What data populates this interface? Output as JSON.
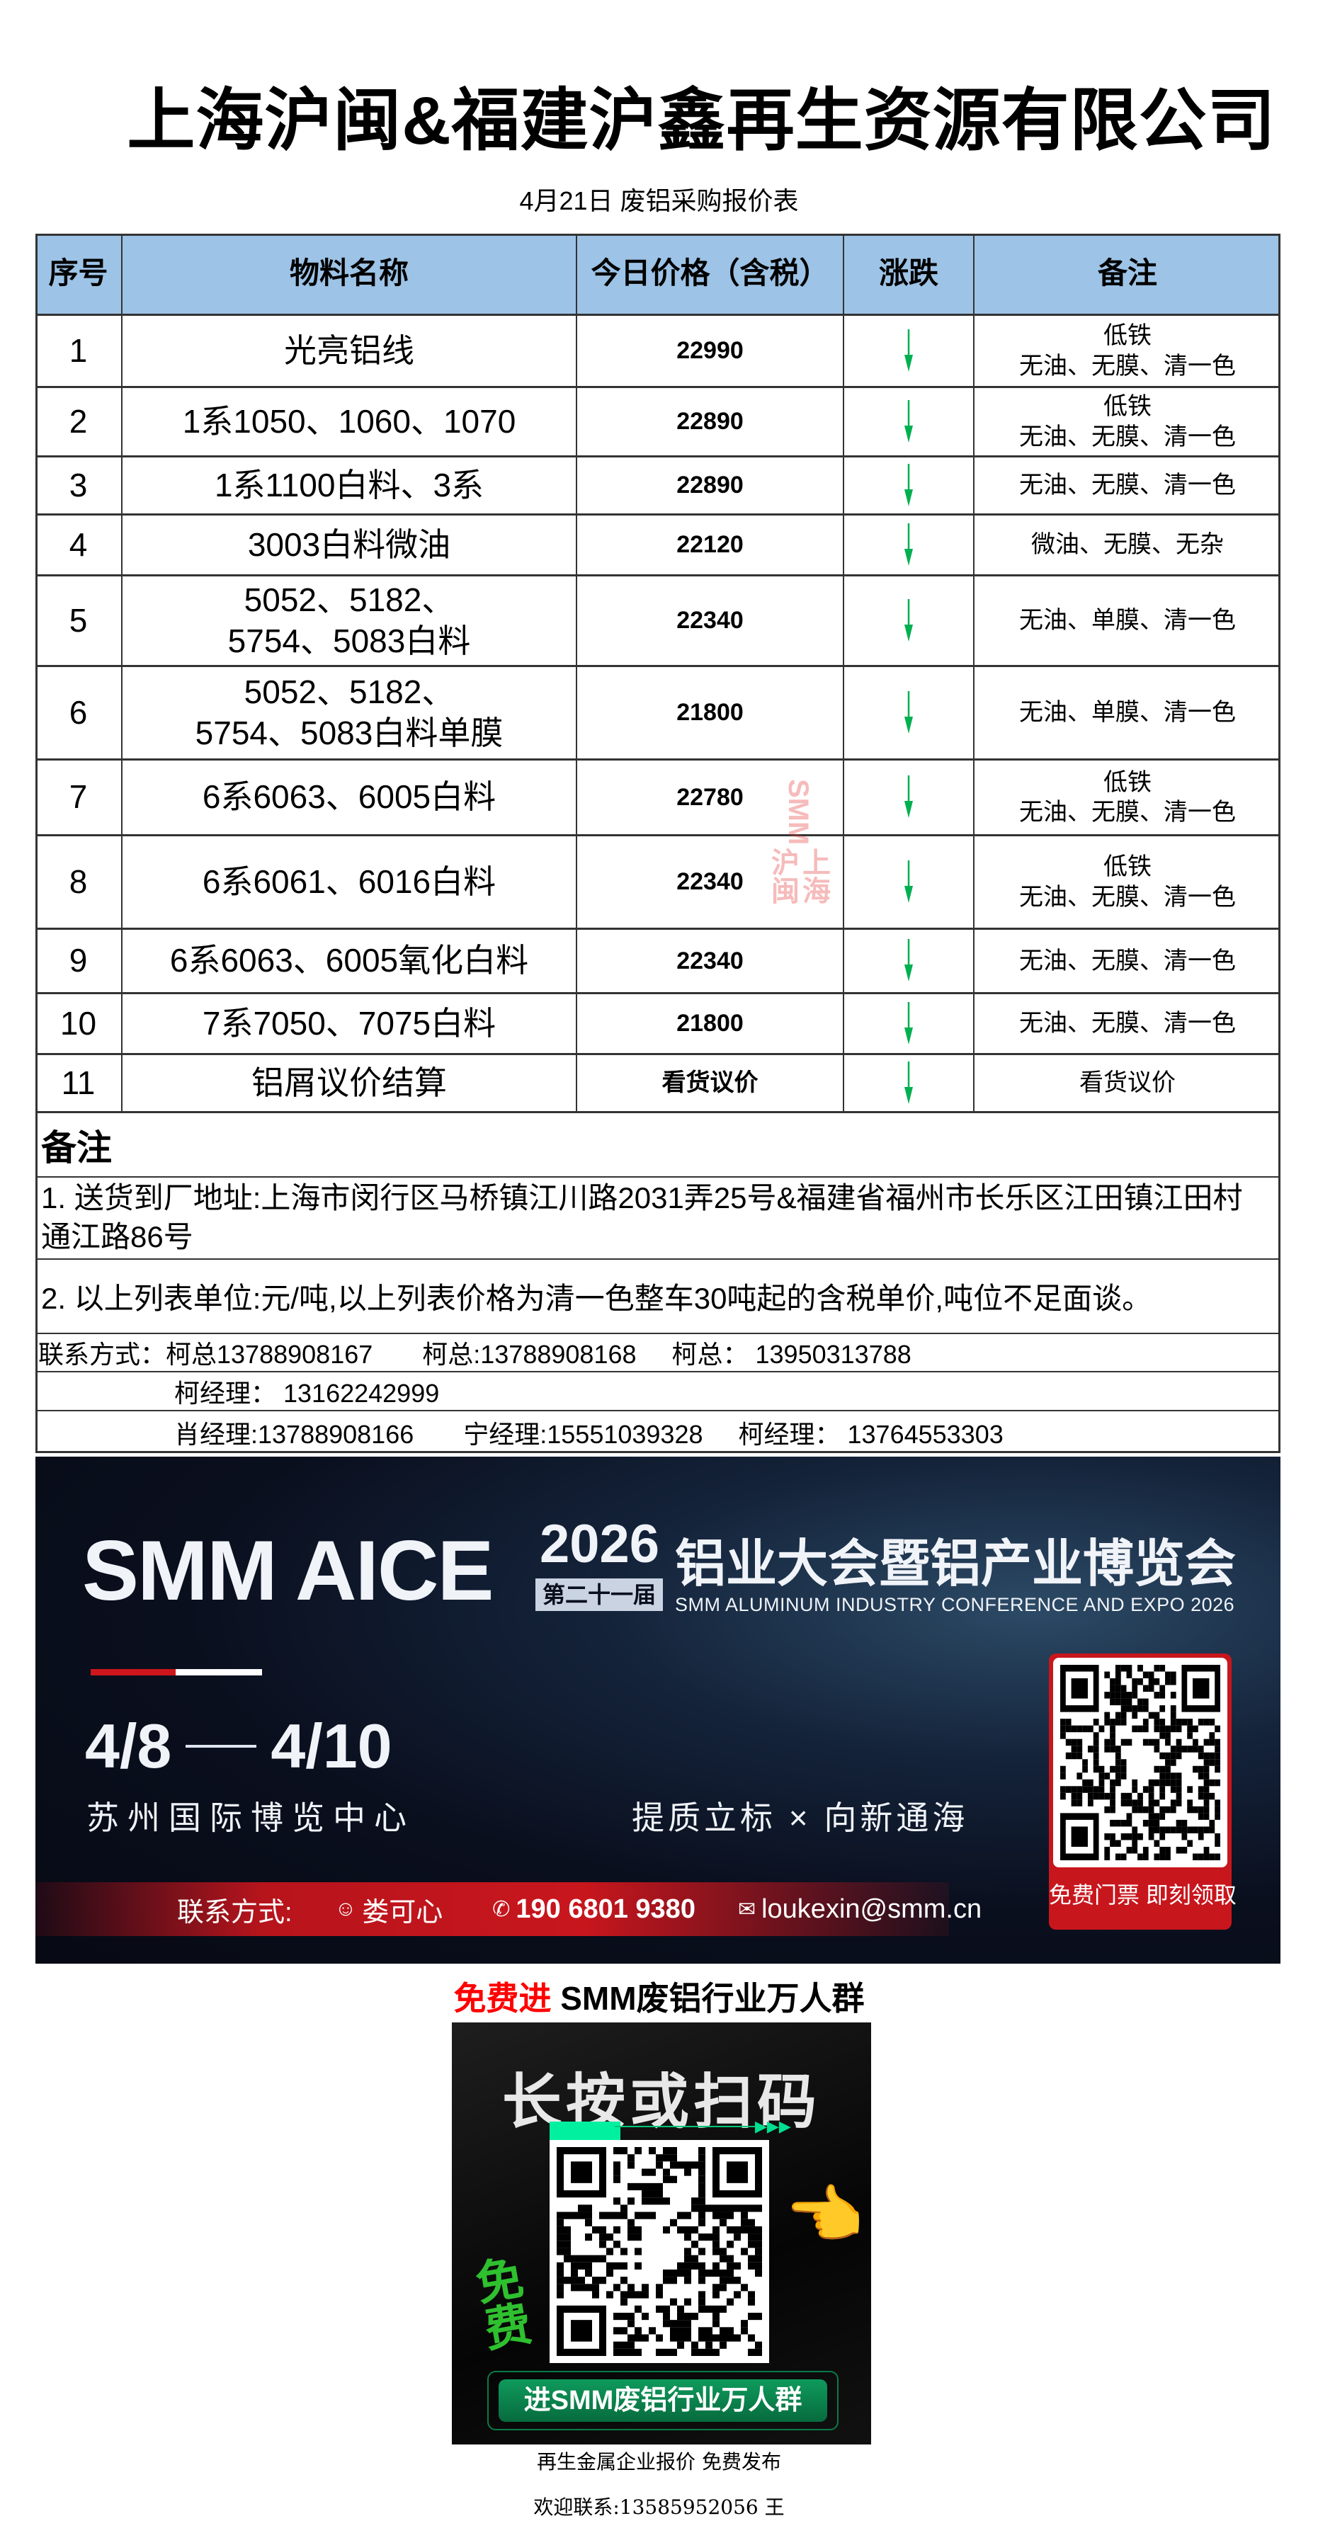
{
  "header": {
    "title": "上海沪闽&福建沪鑫再生资源有限公司",
    "subtitle": "4月21日 废铝采购报价表"
  },
  "table": {
    "columns": [
      "序号",
      "物料名称",
      "今日价格（含税）",
      "涨跌",
      "备注"
    ],
    "trend_color": "#00b050",
    "header_color": "#9dc3e6",
    "rows": [
      {
        "seq": "1",
        "name": [
          "光亮铝线"
        ],
        "price": "22990",
        "trend": "down",
        "remark": [
          "低铁",
          "无油、无膜、清一色"
        ]
      },
      {
        "seq": "2",
        "name": [
          "1系1050、1060、1070"
        ],
        "price": "22890",
        "trend": "down",
        "remark": [
          "低铁",
          "无油、无膜、清一色"
        ]
      },
      {
        "seq": "3",
        "name": [
          "1系1100白料、3系"
        ],
        "price": "22890",
        "trend": "down",
        "remark": [
          "无油、无膜、清一色"
        ]
      },
      {
        "seq": "4",
        "name": [
          "3003白料微油"
        ],
        "price": "22120",
        "trend": "down",
        "remark": [
          "微油、无膜、无杂"
        ]
      },
      {
        "seq": "5",
        "name": [
          "5052、5182、",
          "5754、5083白料"
        ],
        "price": "22340",
        "trend": "down",
        "remark": [
          "无油、单膜、清一色"
        ]
      },
      {
        "seq": "6",
        "name": [
          "5052、5182、",
          "5754、5083白料单膜"
        ],
        "price": "21800",
        "trend": "down",
        "remark": [
          "无油、单膜、清一色"
        ]
      },
      {
        "seq": "7",
        "name": [
          "6系6063、6005白料"
        ],
        "price": "22780",
        "trend": "down",
        "remark": [
          "低铁",
          "无油、无膜、清一色"
        ]
      },
      {
        "seq": "8",
        "name": [
          "6系6061、6016白料"
        ],
        "price": "22340",
        "trend": "down",
        "remark": [
          "低铁",
          "无油、无膜、清一色"
        ]
      },
      {
        "seq": "9",
        "name": [
          "6系6063、6005氧化白料"
        ],
        "price": "22340",
        "trend": "down",
        "remark": [
          "无油、无膜、清一色"
        ]
      },
      {
        "seq": "10",
        "name": [
          "7系7050、7075白料"
        ],
        "price": "21800",
        "trend": "down",
        "remark": [
          "无油、无膜、清一色"
        ]
      },
      {
        "seq": "11",
        "name": [
          "铝屑议价结算"
        ],
        "price": "看货议价",
        "trend": "down",
        "remark": [
          "看货议价"
        ]
      }
    ]
  },
  "watermark": {
    "text1": "SMM",
    "text2": "上海沪闽"
  },
  "notes": {
    "heading": "备注",
    "line1": "1.  送货到厂地址:上海市闵行区马桥镇江川路2031弄25号&福建省福州市长乐区江田镇江田村通江路86号",
    "line2": "2. 以上列表单位:元/吨,以上列表价格为清一色整车30吨起的含税单价,吨位不足面谈。"
  },
  "contacts": {
    "label": "联系方式：",
    "row1": [
      "柯总13788908167",
      "柯总:13788908168",
      "柯总： 13950313788"
    ],
    "row2": [
      "柯经理： 13162242999"
    ],
    "row3": [
      "肖经理:13788908166",
      "宁经理:15551039328",
      "柯经理： 13764553303"
    ]
  },
  "banner": {
    "brand": "SMM AICE",
    "year": "2026",
    "edition": "第二十一届",
    "title_cn": "铝业大会暨铝产业博览会",
    "title_en": "SMM ALUMINUM INDUSTRY CONFERENCE AND EXPO 2026",
    "date_start": "4/8",
    "date_end": "4/10",
    "venue": "苏州国际博览中心",
    "slogan": "提质立标 × 向新通海",
    "contact_label": "联系方式:",
    "contact_name": "娄可心",
    "contact_phone": "190 6801 9380",
    "contact_email": "loukexin@smm.cn",
    "qr_caption": "免费门票 即刻领取",
    "accent": "#c8161d"
  },
  "group": {
    "headline_red": "免费进",
    "headline_black": "SMM废铝行业万人群",
    "poster_title": "长按或扫码",
    "poster_badge": "免费",
    "poster_button": "进SMM废铝行业万人群",
    "accent": "#00c878"
  },
  "footer": {
    "line1": "再生金属企业报价  免费发布",
    "line2": "欢迎联系:13585952056  王"
  }
}
